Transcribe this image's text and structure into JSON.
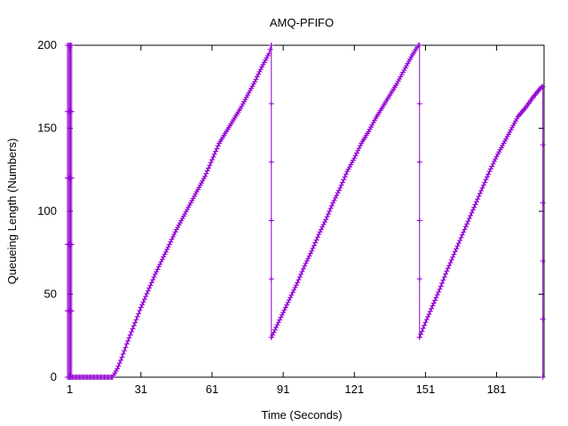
{
  "chart_data": {
    "type": "line",
    "title": "AMQ-PFIFO",
    "xlabel": "Time (Seconds)",
    "ylabel": "Queueing Length (Numbers)",
    "xlim": [
      0,
      201
    ],
    "ylim": [
      0,
      200
    ],
    "xticks": [
      1,
      31,
      61,
      91,
      121,
      151,
      181
    ],
    "yticks": [
      0,
      50,
      100,
      150,
      200
    ],
    "grid": false,
    "legend": "none",
    "series_color": "#9400d3",
    "marker": "plus",
    "spikes": [
      {
        "x": 0.0,
        "from": 0,
        "to": 200
      },
      {
        "x": 0.5,
        "from": 0,
        "to": 200
      },
      {
        "x": 1.0,
        "from": 200,
        "to": 0
      },
      {
        "x": 1.3,
        "from": 0,
        "to": 200
      },
      {
        "x": 1.8,
        "from": 200,
        "to": 0
      },
      {
        "x": 86.0,
        "from": 200,
        "to": 24
      },
      {
        "x": 148.5,
        "from": 200,
        "to": 24
      },
      {
        "x": 200.5,
        "from": 175,
        "to": 0
      }
    ],
    "segments": [
      {
        "points": [
          [
            2,
            0
          ],
          [
            19,
            0
          ]
        ]
      },
      {
        "points": [
          [
            19,
            0
          ],
          [
            21,
            5
          ],
          [
            23,
            12
          ],
          [
            25,
            20
          ],
          [
            28,
            31
          ],
          [
            31,
            42
          ],
          [
            34,
            52
          ],
          [
            37,
            62
          ],
          [
            40,
            71
          ],
          [
            43,
            80
          ],
          [
            46,
            89
          ],
          [
            49,
            97
          ],
          [
            52,
            105
          ],
          [
            55,
            113
          ],
          [
            58,
            121
          ],
          [
            61,
            131
          ],
          [
            64,
            141
          ],
          [
            67,
            148
          ],
          [
            70,
            155
          ],
          [
            73,
            162
          ],
          [
            76,
            170
          ],
          [
            79,
            178
          ],
          [
            82,
            187
          ],
          [
            85,
            195
          ],
          [
            86,
            200
          ]
        ]
      },
      {
        "points": [
          [
            86,
            24
          ],
          [
            88,
            30
          ],
          [
            91,
            39
          ],
          [
            94,
            48
          ],
          [
            97,
            57
          ],
          [
            100,
            67
          ],
          [
            103,
            76
          ],
          [
            106,
            86
          ],
          [
            109,
            95
          ],
          [
            112,
            105
          ],
          [
            115,
            114
          ],
          [
            118,
            124
          ],
          [
            121,
            132
          ],
          [
            124,
            141
          ],
          [
            127,
            148
          ],
          [
            130,
            156
          ],
          [
            133,
            163
          ],
          [
            136,
            170
          ],
          [
            139,
            177
          ],
          [
            142,
            185
          ],
          [
            145,
            193
          ],
          [
            148,
            200
          ]
        ]
      },
      {
        "points": [
          [
            148.5,
            24
          ],
          [
            151,
            33
          ],
          [
            154,
            43
          ],
          [
            157,
            53
          ],
          [
            160,
            64
          ],
          [
            163,
            74
          ],
          [
            166,
            84
          ],
          [
            169,
            94
          ],
          [
            172,
            104
          ],
          [
            175,
            114
          ],
          [
            178,
            124
          ],
          [
            181,
            133
          ],
          [
            184,
            141
          ],
          [
            187,
            149
          ],
          [
            190,
            157
          ],
          [
            193,
            162
          ],
          [
            196,
            168
          ],
          [
            200,
            175
          ]
        ]
      }
    ]
  }
}
